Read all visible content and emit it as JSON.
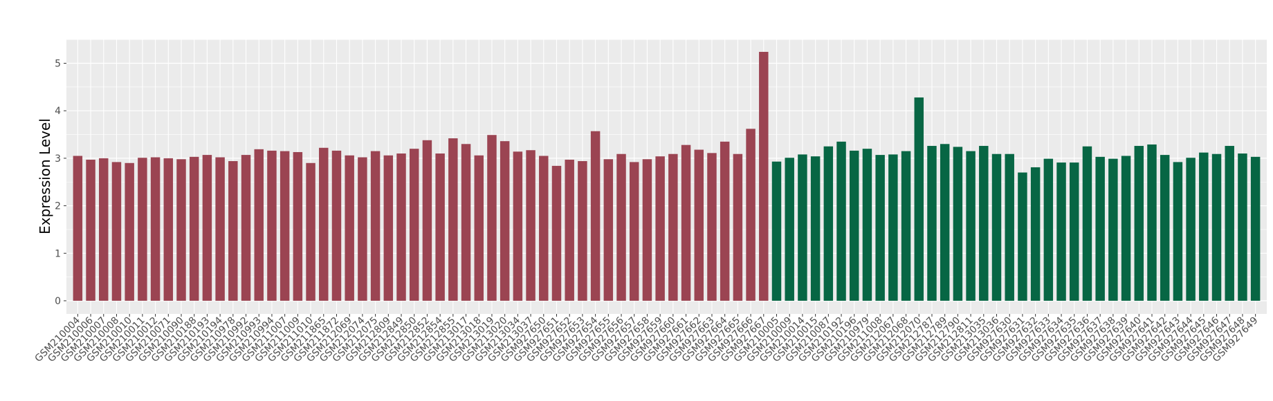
{
  "chart_data": {
    "type": "bar",
    "title": "",
    "xlabel": "",
    "ylabel": "Expression Level",
    "ylim": [
      0,
      5.5
    ],
    "yticks": [
      0,
      1,
      2,
      3,
      4,
      5
    ],
    "grid": true,
    "colors": {
      "group_a": "#9B4452",
      "group_b": "#076644",
      "panel": "#EBEBEB",
      "grid": "#FFFFFF"
    },
    "categories": [
      "GSM210004",
      "GSM210006",
      "GSM210007",
      "GSM210008",
      "GSM210010",
      "GSM210011",
      "GSM210012",
      "GSM210071",
      "GSM210090",
      "GSM210188",
      "GSM210193",
      "GSM210194",
      "GSM210978",
      "GSM210992",
      "GSM210993",
      "GSM210994",
      "GSM211007",
      "GSM211009",
      "GSM211010",
      "GSM211865",
      "GSM211872",
      "GSM212069",
      "GSM212074",
      "GSM212075",
      "GSM212809",
      "GSM212849",
      "GSM212850",
      "GSM212852",
      "GSM212854",
      "GSM212855",
      "GSM213017",
      "GSM213018",
      "GSM213019",
      "GSM213020",
      "GSM213034",
      "GSM213037",
      "GSM927650",
      "GSM927651",
      "GSM927652",
      "GSM927653",
      "GSM927654",
      "GSM927655",
      "GSM927656",
      "GSM927657",
      "GSM927658",
      "GSM927659",
      "GSM927660",
      "GSM927661",
      "GSM927662",
      "GSM927663",
      "GSM927664",
      "GSM927665",
      "GSM927666",
      "GSM927667",
      "GSM210005",
      "GSM210009",
      "GSM210014",
      "GSM210015",
      "GSM210087",
      "GSM210192",
      "GSM210196",
      "GSM210979",
      "GSM211008",
      "GSM212067",
      "GSM212068",
      "GSM212070",
      "GSM212787",
      "GSM212789",
      "GSM212790",
      "GSM212811",
      "GSM213035",
      "GSM213036",
      "GSM927630",
      "GSM927631",
      "GSM927632",
      "GSM927633",
      "GSM927634",
      "GSM927635",
      "GSM927636",
      "GSM927637",
      "GSM927638",
      "GSM927639",
      "GSM927640",
      "GSM927641",
      "GSM927642",
      "GSM927643",
      "GSM927644",
      "GSM927645",
      "GSM927646",
      "GSM927647",
      "GSM927648",
      "GSM927649"
    ],
    "values": [
      3.05,
      2.97,
      3.0,
      2.92,
      2.9,
      3.01,
      3.02,
      3.0,
      2.98,
      3.03,
      3.07,
      3.02,
      2.94,
      3.07,
      3.19,
      3.16,
      3.15,
      3.13,
      2.9,
      3.22,
      3.16,
      3.06,
      3.02,
      3.15,
      3.06,
      3.1,
      3.2,
      3.38,
      3.1,
      3.42,
      3.3,
      3.06,
      3.49,
      3.36,
      3.14,
      3.17,
      3.05,
      2.84,
      2.97,
      2.94,
      3.57,
      2.98,
      3.09,
      2.92,
      2.98,
      3.04,
      3.09,
      3.28,
      3.18,
      3.11,
      3.35,
      3.09,
      3.62,
      5.24,
      2.93,
      3.01,
      3.08,
      3.04,
      3.25,
      3.35,
      3.16,
      3.2,
      3.07,
      3.08,
      3.15,
      4.28,
      3.26,
      3.3,
      3.24,
      3.15,
      3.26,
      3.09,
      3.09,
      2.7,
      2.81,
      2.99,
      2.91,
      2.91,
      3.25,
      3.03,
      2.99,
      3.05,
      3.26,
      3.29,
      3.07,
      2.92,
      3.01,
      3.12,
      3.09,
      3.26,
      3.1,
      3.03
    ],
    "groups": [
      "a",
      "a",
      "a",
      "a",
      "a",
      "a",
      "a",
      "a",
      "a",
      "a",
      "a",
      "a",
      "a",
      "a",
      "a",
      "a",
      "a",
      "a",
      "a",
      "a",
      "a",
      "a",
      "a",
      "a",
      "a",
      "a",
      "a",
      "a",
      "a",
      "a",
      "a",
      "a",
      "a",
      "a",
      "a",
      "a",
      "a",
      "a",
      "a",
      "a",
      "a",
      "a",
      "a",
      "a",
      "a",
      "a",
      "a",
      "a",
      "a",
      "a",
      "a",
      "a",
      "a",
      "a",
      "b",
      "b",
      "b",
      "b",
      "b",
      "b",
      "b",
      "b",
      "b",
      "b",
      "b",
      "b",
      "b",
      "b",
      "b",
      "b",
      "b",
      "b",
      "b",
      "b",
      "b",
      "b",
      "b",
      "b",
      "b",
      "b",
      "b",
      "b",
      "b",
      "b",
      "b",
      "b",
      "b",
      "b",
      "b",
      "b",
      "b",
      "b"
    ]
  }
}
